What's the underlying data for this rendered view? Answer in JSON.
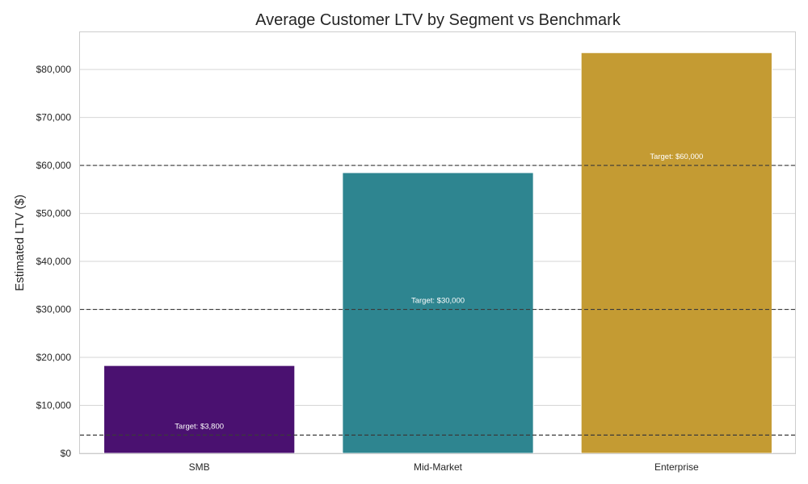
{
  "chart_data": {
    "type": "bar",
    "title": "Average Customer LTV by Segment vs Benchmark",
    "xlabel": "",
    "ylabel": "Estimated LTV ($)",
    "categories": [
      "SMB",
      "Mid-Market",
      "Enterprise"
    ],
    "values": [
      18300,
      58500,
      83500
    ],
    "colors": [
      "#4a1170",
      "#2e8590",
      "#c49b33"
    ],
    "targets": [
      3800,
      30000,
      60000
    ],
    "target_labels": [
      "Target: $3,800",
      "Target: $30,000",
      "Target: $60,000"
    ],
    "ylim": [
      0,
      87750
    ],
    "yticks": [
      0,
      10000,
      20000,
      30000,
      40000,
      50000,
      60000,
      70000,
      80000
    ],
    "ytick_labels": [
      "$0",
      "$10,000",
      "$20,000",
      "$30,000",
      "$40,000",
      "$50,000",
      "$60,000",
      "$70,000",
      "$80,000"
    ],
    "grid": true,
    "target_line_style": "dashed"
  }
}
